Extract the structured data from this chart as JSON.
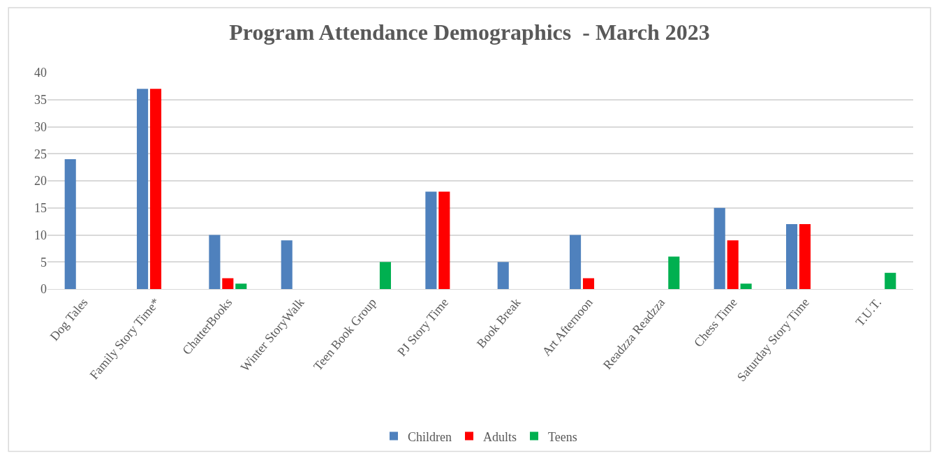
{
  "chart_data": {
    "type": "bar",
    "title": "Program Attendance Demographics  - March 2023",
    "categories": [
      "Dog Tales",
      "Family Story Time*",
      "ChatterBooks",
      "Winter StoryWalk",
      "Teen Book Group",
      "PJ Story Time",
      "Book Break",
      "Art Afternoon",
      "Readzza Readzza",
      "Chess Time",
      "Saturday Story Time",
      "T.U.T."
    ],
    "series": [
      {
        "name": "Children",
        "color": "#4f81bd",
        "values": [
          24,
          37,
          10,
          9,
          null,
          18,
          5,
          10,
          null,
          15,
          12,
          null
        ]
      },
      {
        "name": "Adults",
        "color": "#ff0000",
        "values": [
          null,
          37,
          2,
          null,
          null,
          18,
          null,
          2,
          null,
          9,
          12,
          null
        ]
      },
      {
        "name": "Teens",
        "color": "#00b050",
        "values": [
          null,
          null,
          1,
          null,
          5,
          null,
          null,
          null,
          6,
          1,
          null,
          3
        ]
      }
    ],
    "ylim": [
      0,
      40
    ],
    "yticks": [
      0,
      5,
      10,
      15,
      20,
      25,
      30,
      35,
      40
    ],
    "grid": "y",
    "legend": "bottom"
  }
}
